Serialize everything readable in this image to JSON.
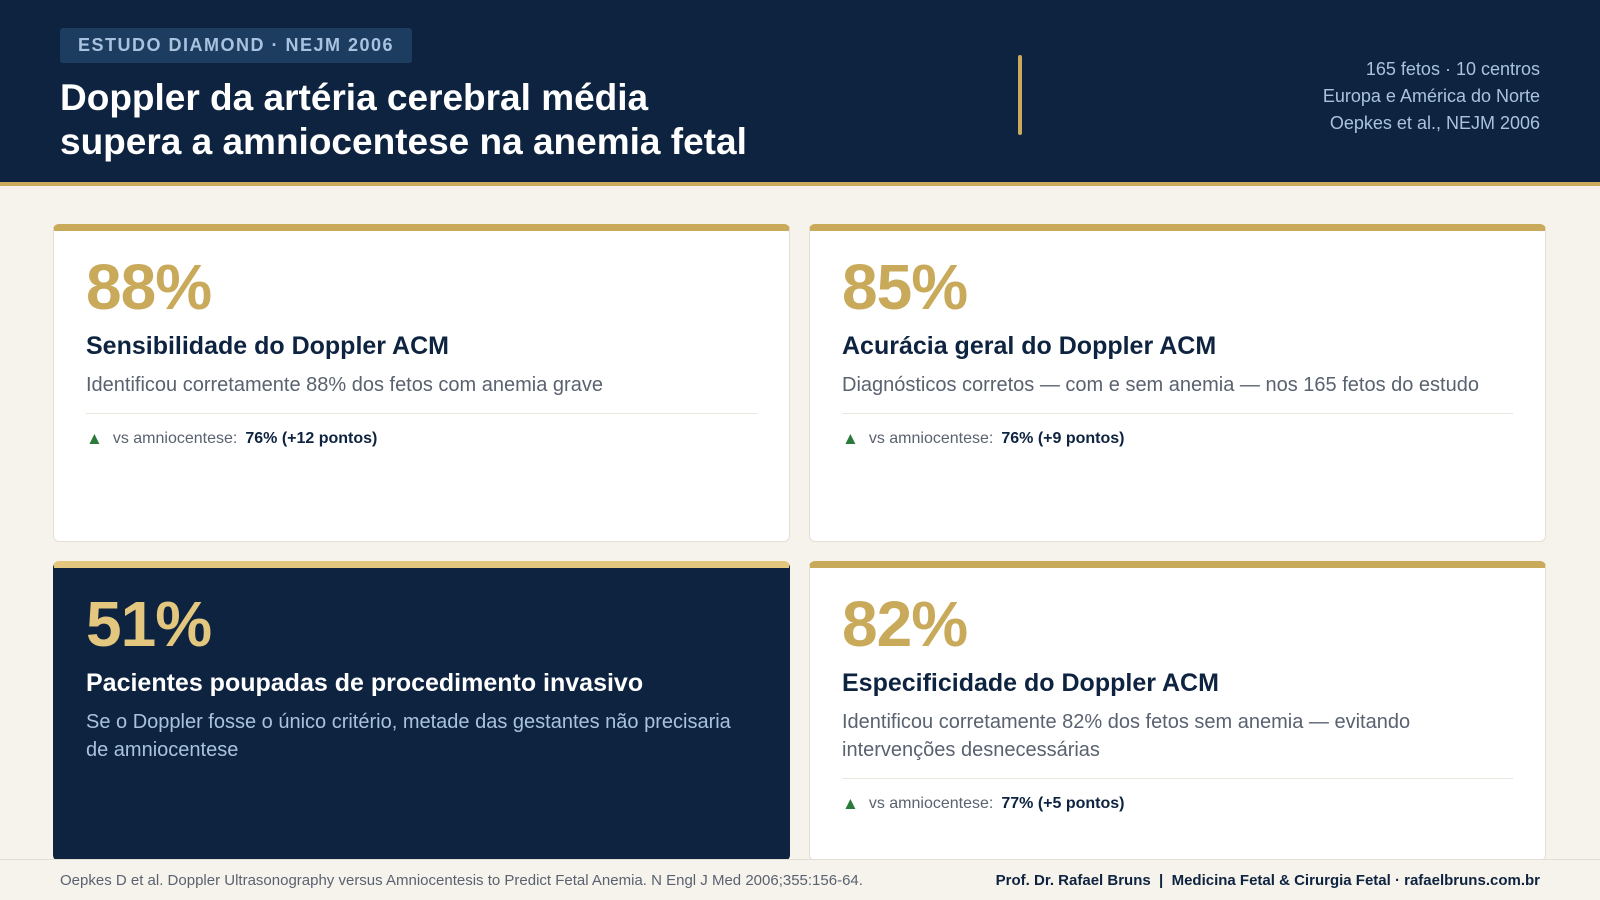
{
  "header": {
    "badge": "ESTUDO DIAMOND · NEJM 2006",
    "title_line1": "Doppler da artéria cerebral média",
    "title_line2": "supera a amniocentese na anemia fetal",
    "meta": [
      "165 fetos · 10 centros",
      "Europa e América do Norte",
      "Oepkes et al., NEJM 2006"
    ]
  },
  "cards": [
    {
      "stat": "88%",
      "label": "Sensibilidade do Doppler ACM",
      "desc": "Identificou corretamente 88% dos fetos com anemia grave",
      "compare_label": "vs amniocentese:",
      "compare_value": "76% (+12 pontos)",
      "icon": "triangle-up-icon"
    },
    {
      "stat": "85%",
      "label": "Acurácia geral do Doppler ACM",
      "desc": "Diagnósticos corretos — com e sem anemia — nos 165 fetos do estudo",
      "compare_label": "vs amniocentese:",
      "compare_value": "76% (+9 pontos)",
      "icon": "triangle-up-icon"
    },
    {
      "stat": "51%",
      "label": "Pacientes poupadas de procedimento invasivo",
      "desc": "Se o Doppler fosse o único critério, metade das gestantes não precisaria de amniocentese"
    },
    {
      "stat": "82%",
      "label": "Especificidade do Doppler ACM",
      "desc": "Identificou corretamente 82% dos fetos sem anemia — evitando intervenções desnecessárias",
      "compare_label": "vs amniocentese:",
      "compare_value": "77% (+5 pontos)",
      "icon": "triangle-up-icon"
    }
  ],
  "footer": {
    "citation": "Oepkes D et al. Doppler Ultrasonography versus Amniocentesis to Predict Fetal Anemia. N Engl J Med 2006;355:156-64.",
    "credit": "Prof. Dr. Rafael Bruns  |  Medicina Fetal & Cirurgia Fetal · rafaelbruns.com.br"
  },
  "icons": {
    "up": "▲"
  },
  "colors": {
    "navy": "#0e2340",
    "gold": "#c9a95a",
    "gold_light": "#e3c77e",
    "green": "#2c7a3a",
    "background": "#f6f3ec"
  }
}
